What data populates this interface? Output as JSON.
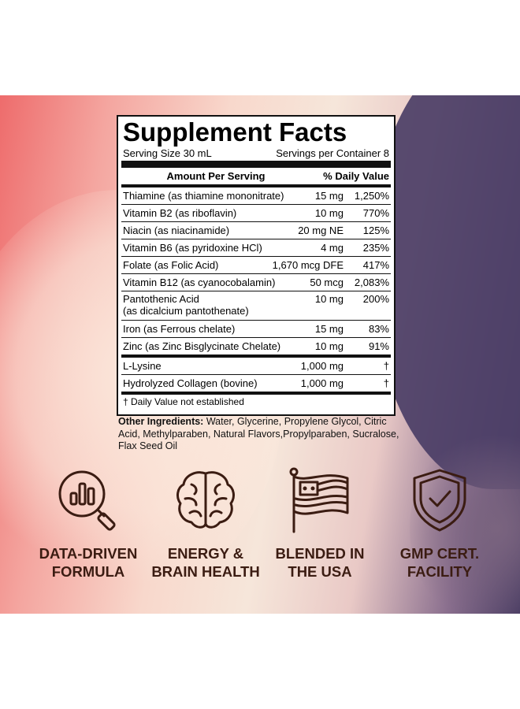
{
  "facts": {
    "title": "Supplement Facts",
    "serving_size": "Serving Size 30 mL",
    "servings_per_container": "Servings per Container 8",
    "col_amount": "Amount Per Serving",
    "col_dv": "% Daily Value",
    "rows": [
      {
        "name": "Thiamine (as thiamine mononitrate)",
        "amount": "15 mg",
        "dv": "1,250%"
      },
      {
        "name": "Vitamin B2 (as riboflavin)",
        "amount": "10 mg",
        "dv": "770%"
      },
      {
        "name": "Niacin (as niacinamide)",
        "amount": "20 mg NE",
        "dv": "125%"
      },
      {
        "name": "Vitamin B6 (as pyridoxine HCl)",
        "amount": "4 mg",
        "dv": "235%"
      },
      {
        "name": "Folate (as Folic Acid)",
        "amount": "1,670 mcg DFE",
        "dv": "417%"
      },
      {
        "name": "Vitamin B12 (as cyanocobalamin)",
        "amount": "50 mcg",
        "dv": "2,083%"
      },
      {
        "name": "Pantothenic Acid",
        "name2": "(as dicalcium pantothenate)",
        "amount": "10 mg",
        "dv": "200%"
      },
      {
        "name": "Iron (as Ferrous chelate)",
        "amount": "15 mg",
        "dv": "83%"
      },
      {
        "name": "Zinc (as Zinc Bisglycinate Chelate)",
        "amount": "10 mg",
        "dv": "91%"
      },
      {
        "name": "L-Lysine",
        "amount": "1,000 mg",
        "dv": "†"
      },
      {
        "name": "Hydrolyzed Collagen (bovine)",
        "amount": "1,000 mg",
        "dv": "†"
      }
    ],
    "footnote": "† Daily Value not established"
  },
  "other_ingredients": {
    "label": "Other Ingredients:",
    "text": " Water, Glycerine, Propylene Glycol, Citric Acid, Methylparaben, Natural Flavors,Propylparaben, Sucralose, Flax Seed Oil"
  },
  "features": [
    {
      "icon": "magnifier-chart-icon",
      "line1": "DATA-DRIVEN",
      "line2": "FORMULA"
    },
    {
      "icon": "brain-icon",
      "line1": "ENERGY &",
      "line2": "BRAIN HEALTH"
    },
    {
      "icon": "usa-flag-icon",
      "line1": "BLENDED IN",
      "line2": "THE USA"
    },
    {
      "icon": "shield-check-icon",
      "line1": "GMP CERT.",
      "line2": "FACILITY"
    }
  ],
  "colors": {
    "icon": "#3b1c12",
    "label": "#3b1c12",
    "panel_left": "#ee6c6c",
    "panel_right": "#4b3e66"
  }
}
